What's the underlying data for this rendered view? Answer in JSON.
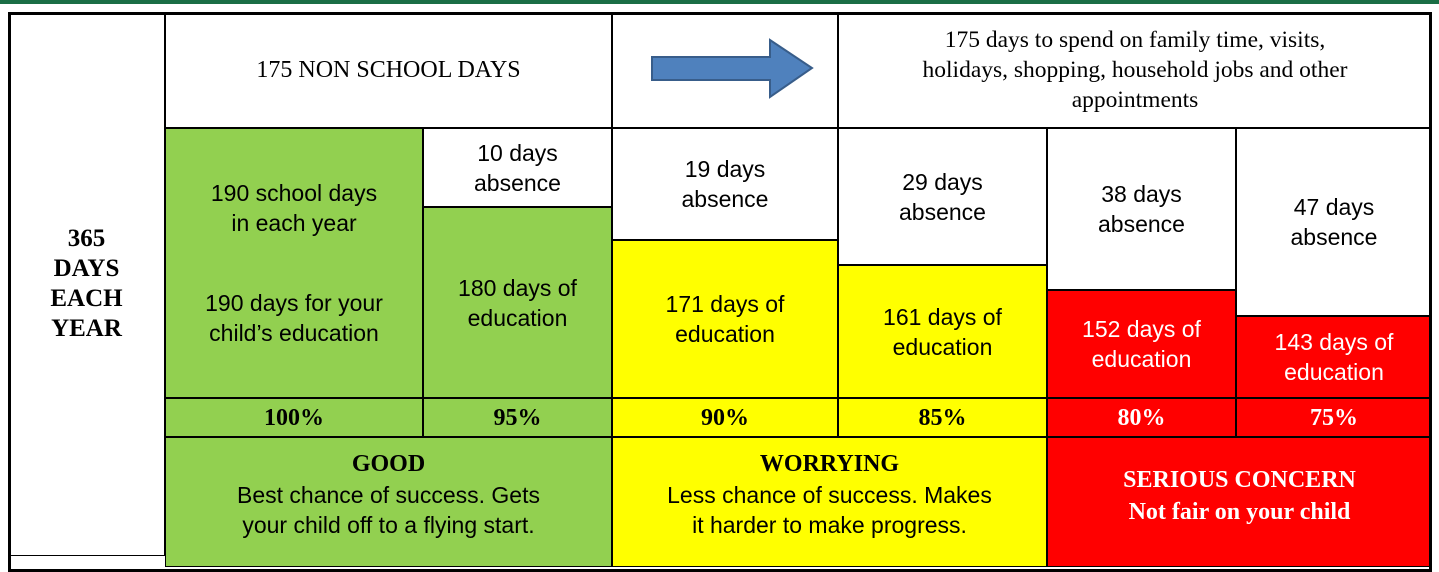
{
  "left_label": [
    "365",
    "DAYS",
    "EACH",
    "YEAR"
  ],
  "top_row": {
    "non_school": "175 NON SCHOOL DAYS",
    "note": [
      "175 days to spend on family time, visits,",
      "holidays, shopping, household jobs and other",
      "appointments"
    ]
  },
  "school_year": {
    "days": [
      "190 school days",
      "in each year"
    ],
    "education": [
      "190 days for your",
      "child’s education"
    ],
    "percent": "100%",
    "color": "#92d050"
  },
  "levels": [
    {
      "absence": [
        "10 days",
        "absence"
      ],
      "education": [
        "180 days of",
        "education"
      ],
      "percent": "95%",
      "color": "#92d050"
    },
    {
      "absence": [
        "19 days",
        "absence"
      ],
      "education": [
        "171 days of",
        "education"
      ],
      "percent": "90%",
      "color": "#ffff00"
    },
    {
      "absence": [
        "29 days",
        "absence"
      ],
      "education": [
        "161 days of",
        "education"
      ],
      "percent": "85%",
      "color": "#ffff00"
    },
    {
      "absence": [
        "38 days",
        "absence"
      ],
      "education": [
        "152 days of",
        "education"
      ],
      "percent": "80%",
      "color": "#ff0000"
    },
    {
      "absence": [
        "47 days",
        "absence"
      ],
      "education": [
        "143 days of",
        "education"
      ],
      "percent": "75%",
      "color": "#ff0000"
    }
  ],
  "bands": [
    {
      "title": "GOOD",
      "text": [
        "Best chance of success. Gets",
        "your child off to a flying start."
      ],
      "color": "#92d050"
    },
    {
      "title": "WORRYING",
      "text": [
        "Less chance of success. Makes",
        "it harder to make progress."
      ],
      "color": "#ffff00"
    },
    {
      "title": "SERIOUS CONCERN",
      "text": [
        "Not fair on your child"
      ],
      "color": "#ff0000"
    }
  ]
}
